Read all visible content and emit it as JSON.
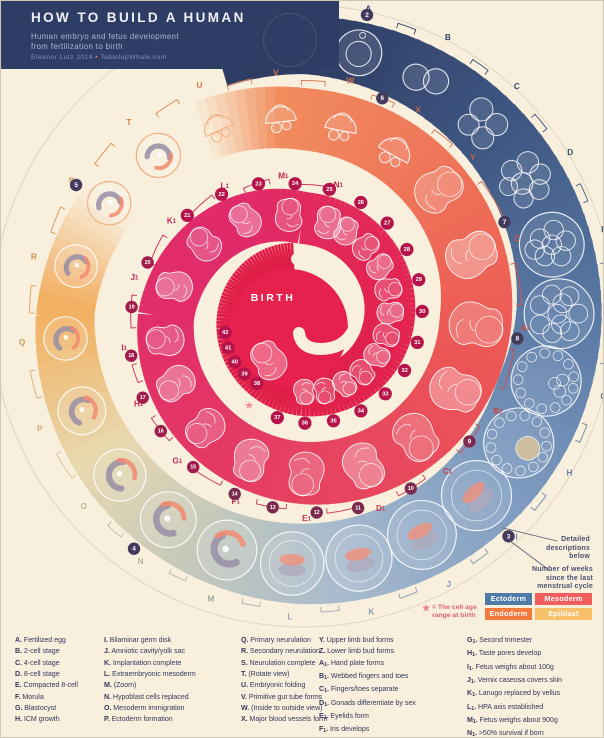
{
  "header": {
    "title": "HOW TO BUILD A HUMAN",
    "subtitle": "Human embryo and fetus development\nfrom fertilization to birth",
    "credit": "Eleanor Lutz 2014",
    "credit_sep": "•",
    "credit_site": "TabletopWhale.com"
  },
  "center_label": "BIRTH",
  "notes": {
    "detail": "Detailed\ndescriptions\nbelow",
    "weeks": "Number of weeks\nsince the last\nmenstrual cycle",
    "star": "= The cell age\nrange at birth"
  },
  "germ_layers": [
    {
      "label": "Ectoderm",
      "color": "#4e7ba7"
    },
    {
      "label": "Mesoderm",
      "color": "#f15e5e"
    },
    {
      "label": "Endoderm",
      "color": "#f37a3d"
    },
    {
      "label": "Epiblast",
      "color": "#f9c06a"
    }
  ],
  "stages": [
    {
      "letter": "A",
      "desc": "Fertilized egg"
    },
    {
      "letter": "B",
      "desc": "2-cell stage"
    },
    {
      "letter": "C",
      "desc": "4-cell stage"
    },
    {
      "letter": "D",
      "desc": "8-cell stage"
    },
    {
      "letter": "E",
      "desc": "Compacted 8-cell"
    },
    {
      "letter": "F",
      "desc": "Morula"
    },
    {
      "letter": "G",
      "desc": "Blastocyst"
    },
    {
      "letter": "H",
      "desc": "ICM growth"
    },
    {
      "letter": "I",
      "desc": "Bilaminar germ disk"
    },
    {
      "letter": "J",
      "desc": "Amniotic cavity/yolk sac"
    },
    {
      "letter": "K",
      "desc": "Implantation complete"
    },
    {
      "letter": "L",
      "desc": "Extraembryonic mesoderm"
    },
    {
      "letter": "M",
      "desc": "(Zoom)"
    },
    {
      "letter": "N",
      "desc": "Hypoblast cells replaced"
    },
    {
      "letter": "O",
      "desc": "Mesoderm immigration"
    },
    {
      "letter": "P",
      "desc": "Ectoderm formation"
    },
    {
      "letter": "Q",
      "desc": "Primary neurulation"
    },
    {
      "letter": "R",
      "desc": "Secondary neurulation"
    },
    {
      "letter": "S",
      "desc": "Neurulation complete"
    },
    {
      "letter": "T",
      "desc": "(Rotate view)"
    },
    {
      "letter": "U",
      "desc": "Embryonic folding"
    },
    {
      "letter": "V",
      "desc": "Primitive gut tube forms"
    },
    {
      "letter": "W",
      "desc": "(Inside to outside view)"
    },
    {
      "letter": "X",
      "desc": "Major blood vessels form"
    },
    {
      "letter": "Y",
      "desc": "Upper limb bud forms"
    },
    {
      "letter": "Z",
      "desc": "Lower limb bud forms"
    },
    {
      "letter": "A1",
      "desc": "Hand plate forms"
    },
    {
      "letter": "B1",
      "desc": "Webbed fingers and toes"
    },
    {
      "letter": "C1",
      "desc": "Fingers/toes separate"
    },
    {
      "letter": "D1",
      "desc": "Gonads differentiate by sex"
    },
    {
      "letter": "E1",
      "desc": "Eyelids form"
    },
    {
      "letter": "F1",
      "desc": "Iris develops"
    },
    {
      "letter": "G1",
      "desc": "Second trimester"
    },
    {
      "letter": "H1",
      "desc": "Taste pores develop"
    },
    {
      "letter": "I1",
      "desc": "Fetus weighs about 100g"
    },
    {
      "letter": "J1",
      "desc": "Vernix caseosa covers skin"
    },
    {
      "letter": "K1",
      "desc": "Lanugo replaced by vellus"
    },
    {
      "letter": "L1",
      "desc": "HPA axis established"
    },
    {
      "letter": "M1",
      "desc": "Fetus weighs about 900g"
    },
    {
      "letter": "N1",
      "desc": ">50% survival if born"
    }
  ],
  "weeks_early": [
    2,
    3,
    4,
    5,
    6,
    7,
    8,
    9,
    10,
    11,
    12,
    13,
    14,
    15,
    16,
    17,
    18,
    19,
    20
  ],
  "weeks_fetal": [
    21,
    22,
    23,
    24,
    25,
    26,
    27,
    28,
    29,
    30,
    31,
    32,
    33,
    34,
    35,
    36,
    37,
    38,
    39,
    40,
    41,
    42
  ]
}
